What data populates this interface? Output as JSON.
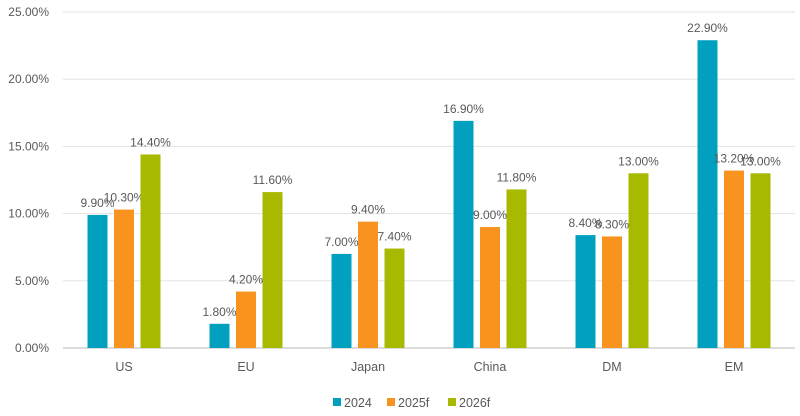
{
  "chart_data": {
    "type": "bar",
    "categories": [
      "US",
      "EU",
      "Japan",
      "China",
      "DM",
      "EM"
    ],
    "series": [
      {
        "name": "2024",
        "color": "#00A0BE",
        "values": [
          9.9,
          1.8,
          7.0,
          16.9,
          8.4,
          22.9
        ],
        "labels": [
          "9.90%",
          "1.80%",
          "7.00%",
          "16.90%",
          "8.40%",
          "22.90%"
        ]
      },
      {
        "name": "2025f",
        "color": "#F7931E",
        "values": [
          10.3,
          4.2,
          9.4,
          9.0,
          8.3,
          13.2
        ],
        "labels": [
          "10.30%",
          "4.20%",
          "9.40%",
          "9.00%",
          "8.30%",
          "13.20%"
        ]
      },
      {
        "name": "2026f",
        "color": "#A8BA00",
        "values": [
          14.4,
          11.6,
          7.4,
          11.8,
          13.0,
          13.0
        ],
        "labels": [
          "14.40%",
          "11.60%",
          "7.40%",
          "11.80%",
          "13.00%",
          "13.00%"
        ]
      }
    ],
    "ylim": [
      0,
      25
    ],
    "yticks": [
      "0.00%",
      "5.00%",
      "10.00%",
      "15.00%",
      "20.00%",
      "25.00%"
    ],
    "grid": true,
    "legend_position": "bottom",
    "title": "",
    "xlabel": "",
    "ylabel": ""
  }
}
